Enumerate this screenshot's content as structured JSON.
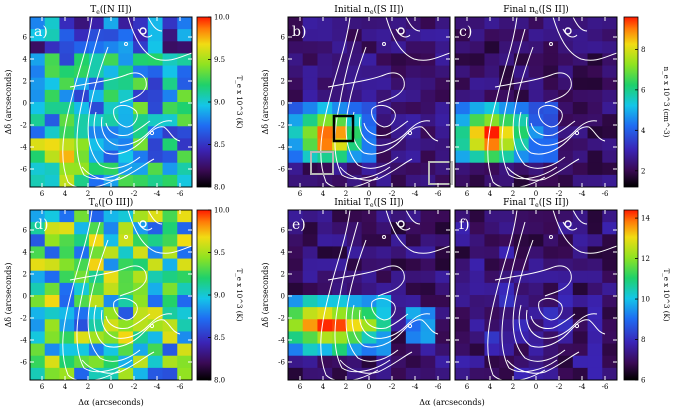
{
  "panels": [
    {
      "id": "a",
      "letter": "a)",
      "title": "T_e([N II])",
      "map": "te_nii"
    },
    {
      "id": "b",
      "letter": "b)",
      "title": "Initial n_e([S II])",
      "map": "ne_init"
    },
    {
      "id": "c",
      "letter": "c)",
      "title": "Final n_e([S II])",
      "map": "ne_final"
    },
    {
      "id": "d",
      "letter": "d)",
      "title": "T_e([O III])",
      "map": "te_oiii"
    },
    {
      "id": "e",
      "letter": "e)",
      "title": "Initial T_e([S II])",
      "map": "te_sii_init"
    },
    {
      "id": "f",
      "letter": "f)",
      "title": "Final T_e([S II])",
      "map": "te_sii_final"
    }
  ],
  "axes": {
    "ylabel": "Δδ (arcseconds)",
    "xlabel": "Δα (arcseconds)",
    "xticks": [
      "6",
      "4",
      "2",
      "0",
      "-2",
      "-4",
      "-6"
    ],
    "yticks": [
      "6",
      "4",
      "2",
      "0",
      "-2",
      "-4",
      "-6"
    ]
  },
  "colorbars": [
    {
      "id": "cb-te-top",
      "label": "T_e x 10^3 (K)",
      "ticks": [
        "10.0",
        "9.5",
        "9.0",
        "8.5",
        "8.0"
      ],
      "min": 8.0,
      "max": 10.0
    },
    {
      "id": "cb-ne",
      "label": "n_e x 10^3 (cm^-3)",
      "ticks": [
        "8",
        "6",
        "4",
        "2"
      ],
      "min": 1.2,
      "max": 9.6
    },
    {
      "id": "cb-te-bottom",
      "label": "T_e x 10^3 (K)",
      "ticks": [
        "10.0",
        "9.5",
        "9.0",
        "8.5",
        "8.0"
      ],
      "min": 8.0,
      "max": 10.0
    },
    {
      "id": "cb-te-sii",
      "label": "T_e x 10^3 (K)",
      "ticks": [
        "14",
        "12",
        "10",
        "8",
        "6"
      ],
      "min": 6,
      "max": 14.4
    }
  ],
  "colors": {
    "contour": "#ffffff",
    "box_black": "#000000",
    "box_gray": "#b8b8b8"
  }
}
